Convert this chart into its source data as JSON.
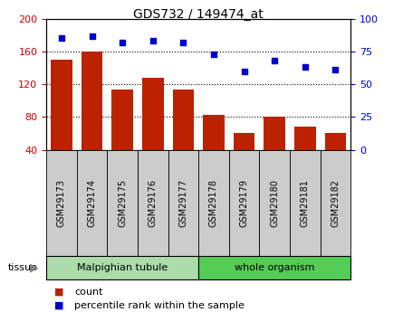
{
  "title": "GDS732 / 149474_at",
  "categories": [
    "GSM29173",
    "GSM29174",
    "GSM29175",
    "GSM29176",
    "GSM29177",
    "GSM29178",
    "GSM29179",
    "GSM29180",
    "GSM29181",
    "GSM29182"
  ],
  "bar_values": [
    150,
    160,
    113,
    128,
    113,
    83,
    60,
    80,
    68,
    60
  ],
  "dot_values": [
    85,
    87,
    82,
    83,
    82,
    73,
    60,
    68,
    63,
    61
  ],
  "bar_color": "#bb2200",
  "dot_color": "#0000cc",
  "ylim_left": [
    40,
    200
  ],
  "ylim_right": [
    0,
    100
  ],
  "yticks_left": [
    40,
    80,
    120,
    160,
    200
  ],
  "yticks_right": [
    0,
    25,
    50,
    75,
    100
  ],
  "gridlines": [
    80,
    120,
    160
  ],
  "tissue_groups": [
    {
      "label": "Malpighian tubule",
      "start": 0,
      "end": 5,
      "color": "#aaddaa"
    },
    {
      "label": "whole organism",
      "start": 5,
      "end": 10,
      "color": "#55cc55"
    }
  ],
  "legend_items": [
    {
      "label": "count",
      "color": "#bb2200"
    },
    {
      "label": "percentile rank within the sample",
      "color": "#0000cc"
    }
  ],
  "tissue_label": "tissue",
  "bg_color": "#ffffff",
  "tick_color_left": "#cc0000",
  "tick_color_right": "#0000cc",
  "tick_bg_color": "#cccccc",
  "bar_width": 0.7
}
